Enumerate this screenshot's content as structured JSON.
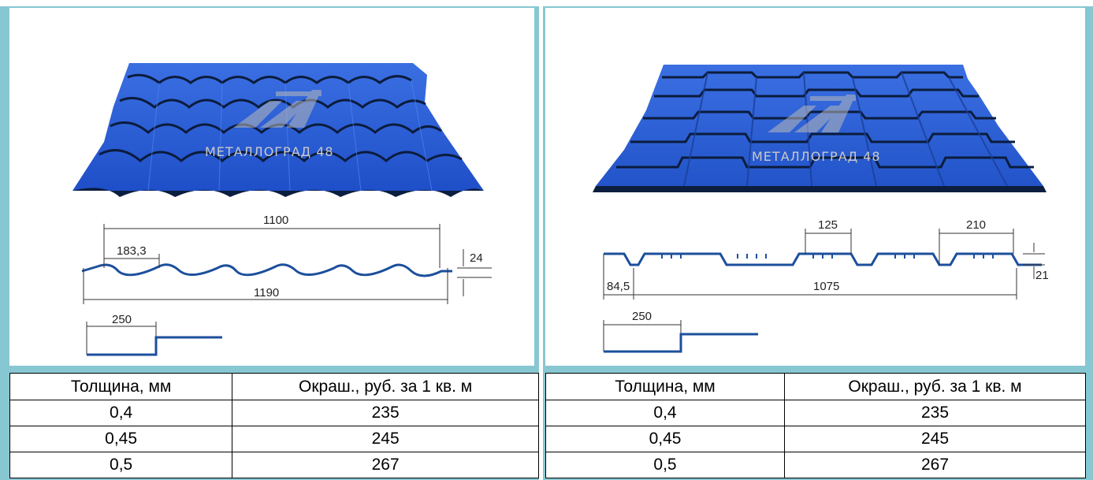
{
  "watermark": {
    "brand": "МЕТАЛЛОГРАД 48"
  },
  "left_panel": {
    "dimensions": {
      "pitch": "183,3",
      "useful_width": "1100",
      "full_width": "1190",
      "height": "24",
      "step": "250"
    }
  },
  "right_panel": {
    "dimensions": {
      "top_a": "125",
      "top_b": "210",
      "edge": "84,5",
      "useful_width": "1075",
      "height": "21",
      "step": "250"
    }
  },
  "price_table": {
    "headers": [
      "Толщина,  мм",
      "Окраш., руб. за 1 кв. м"
    ],
    "rows": [
      [
        "0,4",
        "235"
      ],
      [
        "0,45",
        "245"
      ],
      [
        "0,5",
        "267"
      ]
    ]
  },
  "colors": {
    "frame": "#87c7d2",
    "sheet_blue": "#2f62d8",
    "profile_blue": "#1c4f9c"
  }
}
